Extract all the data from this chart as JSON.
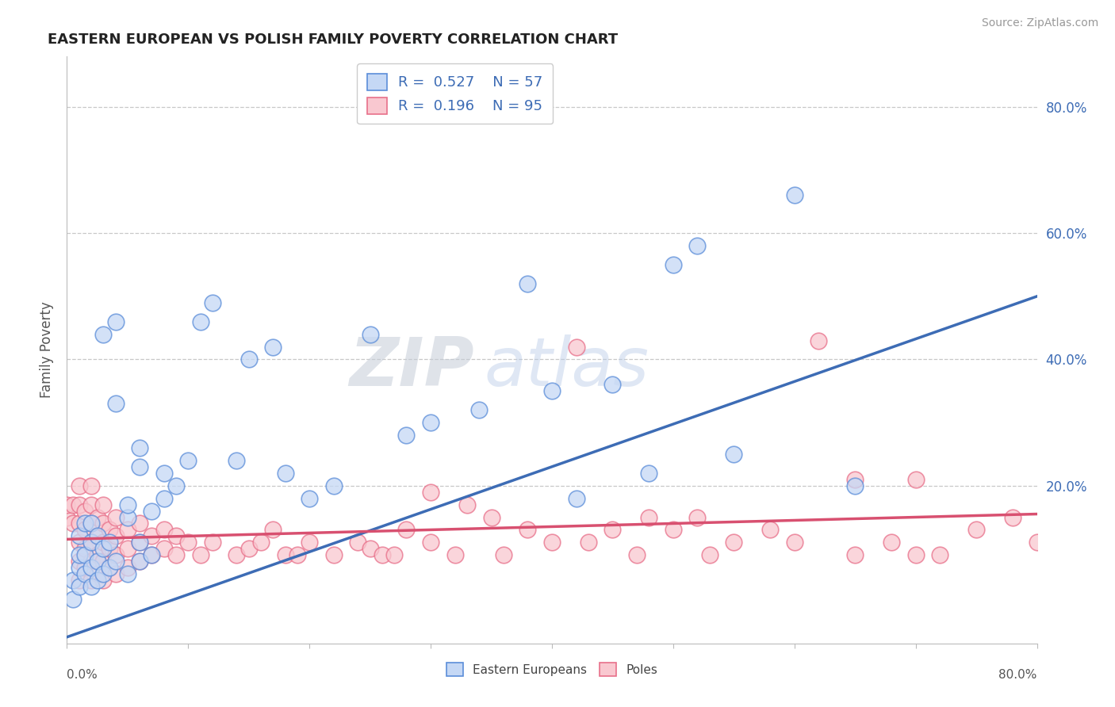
{
  "title": "EASTERN EUROPEAN VS POLISH FAMILY POVERTY CORRELATION CHART",
  "source": "Source: ZipAtlas.com",
  "ylabel": "Family Poverty",
  "xlim": [
    0.0,
    0.8
  ],
  "ylim": [
    -0.05,
    0.88
  ],
  "color_blue_face": "#C5D8F5",
  "color_blue_edge": "#5B8DD9",
  "color_pink_face": "#F9C8D0",
  "color_pink_edge": "#E8708A",
  "line_blue": "#3D6CB5",
  "line_pink": "#D85070",
  "watermark_zip": "ZIP",
  "watermark_atlas": "atlas",
  "blue_line_x0": 0.0,
  "blue_line_y0": -0.04,
  "blue_line_x1": 0.8,
  "blue_line_y1": 0.5,
  "pink_line_x0": 0.0,
  "pink_line_y0": 0.115,
  "pink_line_x1": 0.8,
  "pink_line_y1": 0.155,
  "blue_scatter": [
    [
      0.005,
      0.02
    ],
    [
      0.005,
      0.05
    ],
    [
      0.01,
      0.04
    ],
    [
      0.01,
      0.07
    ],
    [
      0.01,
      0.09
    ],
    [
      0.01,
      0.12
    ],
    [
      0.015,
      0.06
    ],
    [
      0.015,
      0.09
    ],
    [
      0.015,
      0.14
    ],
    [
      0.02,
      0.04
    ],
    [
      0.02,
      0.07
    ],
    [
      0.02,
      0.11
    ],
    [
      0.02,
      0.14
    ],
    [
      0.025,
      0.05
    ],
    [
      0.025,
      0.08
    ],
    [
      0.025,
      0.12
    ],
    [
      0.03,
      0.06
    ],
    [
      0.03,
      0.1
    ],
    [
      0.03,
      0.44
    ],
    [
      0.035,
      0.07
    ],
    [
      0.035,
      0.11
    ],
    [
      0.04,
      0.08
    ],
    [
      0.04,
      0.33
    ],
    [
      0.04,
      0.46
    ],
    [
      0.05,
      0.06
    ],
    [
      0.05,
      0.15
    ],
    [
      0.05,
      0.17
    ],
    [
      0.06,
      0.08
    ],
    [
      0.06,
      0.11
    ],
    [
      0.06,
      0.23
    ],
    [
      0.06,
      0.26
    ],
    [
      0.07,
      0.09
    ],
    [
      0.07,
      0.16
    ],
    [
      0.08,
      0.18
    ],
    [
      0.08,
      0.22
    ],
    [
      0.09,
      0.2
    ],
    [
      0.1,
      0.24
    ],
    [
      0.11,
      0.46
    ],
    [
      0.12,
      0.49
    ],
    [
      0.14,
      0.24
    ],
    [
      0.15,
      0.4
    ],
    [
      0.17,
      0.42
    ],
    [
      0.18,
      0.22
    ],
    [
      0.2,
      0.18
    ],
    [
      0.22,
      0.2
    ],
    [
      0.25,
      0.44
    ],
    [
      0.28,
      0.28
    ],
    [
      0.3,
      0.3
    ],
    [
      0.34,
      0.32
    ],
    [
      0.38,
      0.52
    ],
    [
      0.4,
      0.35
    ],
    [
      0.42,
      0.18
    ],
    [
      0.45,
      0.36
    ],
    [
      0.48,
      0.22
    ],
    [
      0.5,
      0.55
    ],
    [
      0.52,
      0.58
    ],
    [
      0.55,
      0.25
    ],
    [
      0.6,
      0.66
    ],
    [
      0.65,
      0.2
    ]
  ],
  "pink_scatter": [
    [
      0.0,
      0.15
    ],
    [
      0.0,
      0.17
    ],
    [
      0.005,
      0.14
    ],
    [
      0.005,
      0.17
    ],
    [
      0.01,
      0.05
    ],
    [
      0.01,
      0.08
    ],
    [
      0.01,
      0.11
    ],
    [
      0.01,
      0.14
    ],
    [
      0.01,
      0.17
    ],
    [
      0.01,
      0.2
    ],
    [
      0.015,
      0.07
    ],
    [
      0.015,
      0.1
    ],
    [
      0.015,
      0.13
    ],
    [
      0.015,
      0.16
    ],
    [
      0.02,
      0.05
    ],
    [
      0.02,
      0.08
    ],
    [
      0.02,
      0.11
    ],
    [
      0.02,
      0.14
    ],
    [
      0.02,
      0.17
    ],
    [
      0.02,
      0.2
    ],
    [
      0.025,
      0.06
    ],
    [
      0.025,
      0.09
    ],
    [
      0.025,
      0.12
    ],
    [
      0.025,
      0.15
    ],
    [
      0.03,
      0.05
    ],
    [
      0.03,
      0.08
    ],
    [
      0.03,
      0.11
    ],
    [
      0.03,
      0.14
    ],
    [
      0.03,
      0.17
    ],
    [
      0.035,
      0.07
    ],
    [
      0.035,
      0.1
    ],
    [
      0.035,
      0.13
    ],
    [
      0.04,
      0.06
    ],
    [
      0.04,
      0.09
    ],
    [
      0.04,
      0.12
    ],
    [
      0.04,
      0.15
    ],
    [
      0.05,
      0.07
    ],
    [
      0.05,
      0.1
    ],
    [
      0.05,
      0.13
    ],
    [
      0.06,
      0.08
    ],
    [
      0.06,
      0.11
    ],
    [
      0.06,
      0.14
    ],
    [
      0.07,
      0.09
    ],
    [
      0.07,
      0.12
    ],
    [
      0.08,
      0.1
    ],
    [
      0.08,
      0.13
    ],
    [
      0.09,
      0.09
    ],
    [
      0.09,
      0.12
    ],
    [
      0.1,
      0.11
    ],
    [
      0.11,
      0.09
    ],
    [
      0.12,
      0.11
    ],
    [
      0.14,
      0.09
    ],
    [
      0.15,
      0.1
    ],
    [
      0.16,
      0.11
    ],
    [
      0.17,
      0.13
    ],
    [
      0.18,
      0.09
    ],
    [
      0.19,
      0.09
    ],
    [
      0.2,
      0.11
    ],
    [
      0.22,
      0.09
    ],
    [
      0.24,
      0.11
    ],
    [
      0.25,
      0.1
    ],
    [
      0.26,
      0.09
    ],
    [
      0.27,
      0.09
    ],
    [
      0.28,
      0.13
    ],
    [
      0.3,
      0.11
    ],
    [
      0.3,
      0.19
    ],
    [
      0.32,
      0.09
    ],
    [
      0.33,
      0.17
    ],
    [
      0.35,
      0.15
    ],
    [
      0.36,
      0.09
    ],
    [
      0.38,
      0.13
    ],
    [
      0.4,
      0.11
    ],
    [
      0.42,
      0.42
    ],
    [
      0.43,
      0.11
    ],
    [
      0.45,
      0.13
    ],
    [
      0.47,
      0.09
    ],
    [
      0.48,
      0.15
    ],
    [
      0.5,
      0.13
    ],
    [
      0.52,
      0.15
    ],
    [
      0.53,
      0.09
    ],
    [
      0.55,
      0.11
    ],
    [
      0.58,
      0.13
    ],
    [
      0.6,
      0.11
    ],
    [
      0.62,
      0.43
    ],
    [
      0.65,
      0.09
    ],
    [
      0.65,
      0.21
    ],
    [
      0.68,
      0.11
    ],
    [
      0.7,
      0.09
    ],
    [
      0.7,
      0.21
    ],
    [
      0.72,
      0.09
    ],
    [
      0.75,
      0.13
    ],
    [
      0.78,
      0.15
    ],
    [
      0.8,
      0.11
    ]
  ]
}
